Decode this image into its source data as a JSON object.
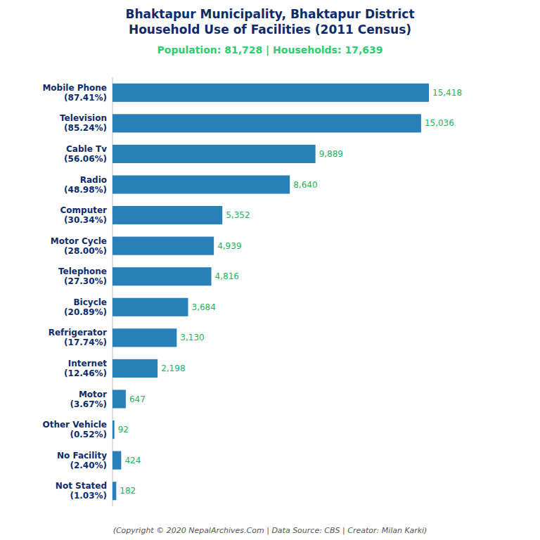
{
  "chart_data": {
    "type": "bar",
    "orientation": "horizontal",
    "title": "Bhaktapur Municipality, Bhaktapur District\nHousehold Use of Facilities (2011 Census)",
    "subtitle": "Population: 81,728 | Households: 17,639",
    "annotations": [
      "(Copyright © 2020 NepalArchives.Com | Data Source: CBS | Creator: Milan Karki)"
    ],
    "categories": [
      "Mobile Phone\n(87.41%)",
      "Television\n(85.24%)",
      "Cable Tv\n(56.06%)",
      "Radio\n(48.98%)",
      "Computer\n(30.34%)",
      "Motor Cycle\n(28.00%)",
      "Telephone\n(27.30%)",
      "Bicycle\n(20.89%)",
      "Refrigerator\n(17.74%)",
      "Internet\n(12.46%)",
      "Motor\n(3.67%)",
      "Other Vehicle\n(0.52%)",
      "No Facility\n(2.40%)",
      "Not Stated\n(1.03%)"
    ],
    "values": [
      15418,
      15036,
      9889,
      8640,
      5352,
      4939,
      4816,
      3684,
      3130,
      2198,
      647,
      92,
      424,
      182
    ],
    "value_labels": [
      "15,418",
      "15,036",
      "9,889",
      "8,640",
      "5,352",
      "4,939",
      "4,816",
      "3,684",
      "3,130",
      "2,198",
      "647",
      "92",
      "424",
      "182"
    ],
    "data_labels": true,
    "color": "#2980b9",
    "xlim": [
      0,
      18500
    ],
    "tick_labels": "y",
    "grid": false
  }
}
